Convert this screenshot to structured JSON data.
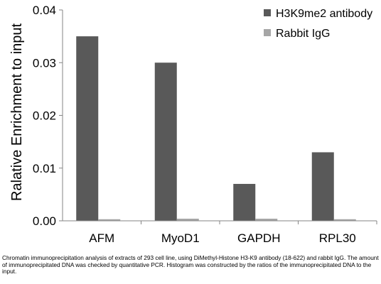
{
  "chart_data": {
    "type": "bar",
    "title": "",
    "xlabel": "",
    "ylabel": "Ralative Enrichment to input",
    "categories": [
      "AFM",
      "MyoD1",
      "GAPDH",
      "RPL30"
    ],
    "series": [
      {
        "name": "H3K9me2 antibody",
        "values": [
          0.035,
          0.03,
          0.007,
          0.013
        ],
        "color": "#595959"
      },
      {
        "name": "Rabbit IgG",
        "values": [
          0.0003,
          0.0004,
          0.0004,
          0.0003
        ],
        "color": "#a6a6a6"
      }
    ],
    "ylim": [
      0,
      0.04
    ],
    "yticks": [
      "0.00",
      "0.01",
      "0.02",
      "0.03",
      "0.04"
    ],
    "grid": false,
    "legend_position": "top-right"
  },
  "caption": "Chromatin immunoprecipitation analysis of extracts of 293 cell line, using DiMethyl-Histone H3-K9 antibody (18-622) and rabbit IgG. The amount of immunoprecipitated DNA was checked by quantitative PCR. Histogram was constructed by the ratios of the immunoprecipitated DNA to the input."
}
